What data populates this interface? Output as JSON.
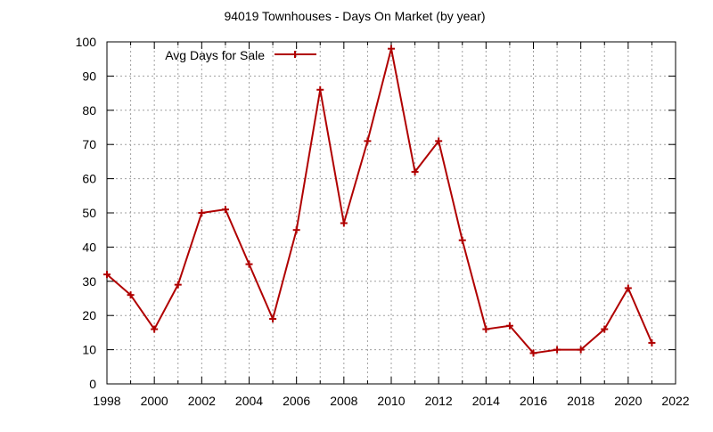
{
  "chart_data": {
    "type": "line",
    "title": "94019 Townhouses - Days On Market (by year)",
    "xlabel": "",
    "ylabel": "",
    "xlim": [
      1998,
      2022
    ],
    "ylim": [
      0,
      100
    ],
    "x_ticks": [
      1998,
      2000,
      2002,
      2004,
      2006,
      2008,
      2010,
      2012,
      2014,
      2016,
      2018,
      2020,
      2022
    ],
    "y_ticks": [
      0,
      10,
      20,
      30,
      40,
      50,
      60,
      70,
      80,
      90,
      100
    ],
    "x_grid_step": 1,
    "grid": true,
    "legend_position": "top-left",
    "series": [
      {
        "name": "Avg Days for Sale",
        "color": "#b00000",
        "marker": "plus",
        "x": [
          1998,
          1999,
          2000,
          2001,
          2002,
          2003,
          2004,
          2005,
          2006,
          2007,
          2008,
          2009,
          2010,
          2011,
          2012,
          2013,
          2014,
          2015,
          2016,
          2017,
          2018,
          2019,
          2020,
          2021
        ],
        "y": [
          32,
          26,
          16,
          29,
          50,
          51,
          35,
          19,
          45,
          86,
          47,
          71,
          98,
          62,
          71,
          42,
          16,
          17,
          9,
          10,
          10,
          16,
          28,
          12
        ]
      }
    ]
  }
}
